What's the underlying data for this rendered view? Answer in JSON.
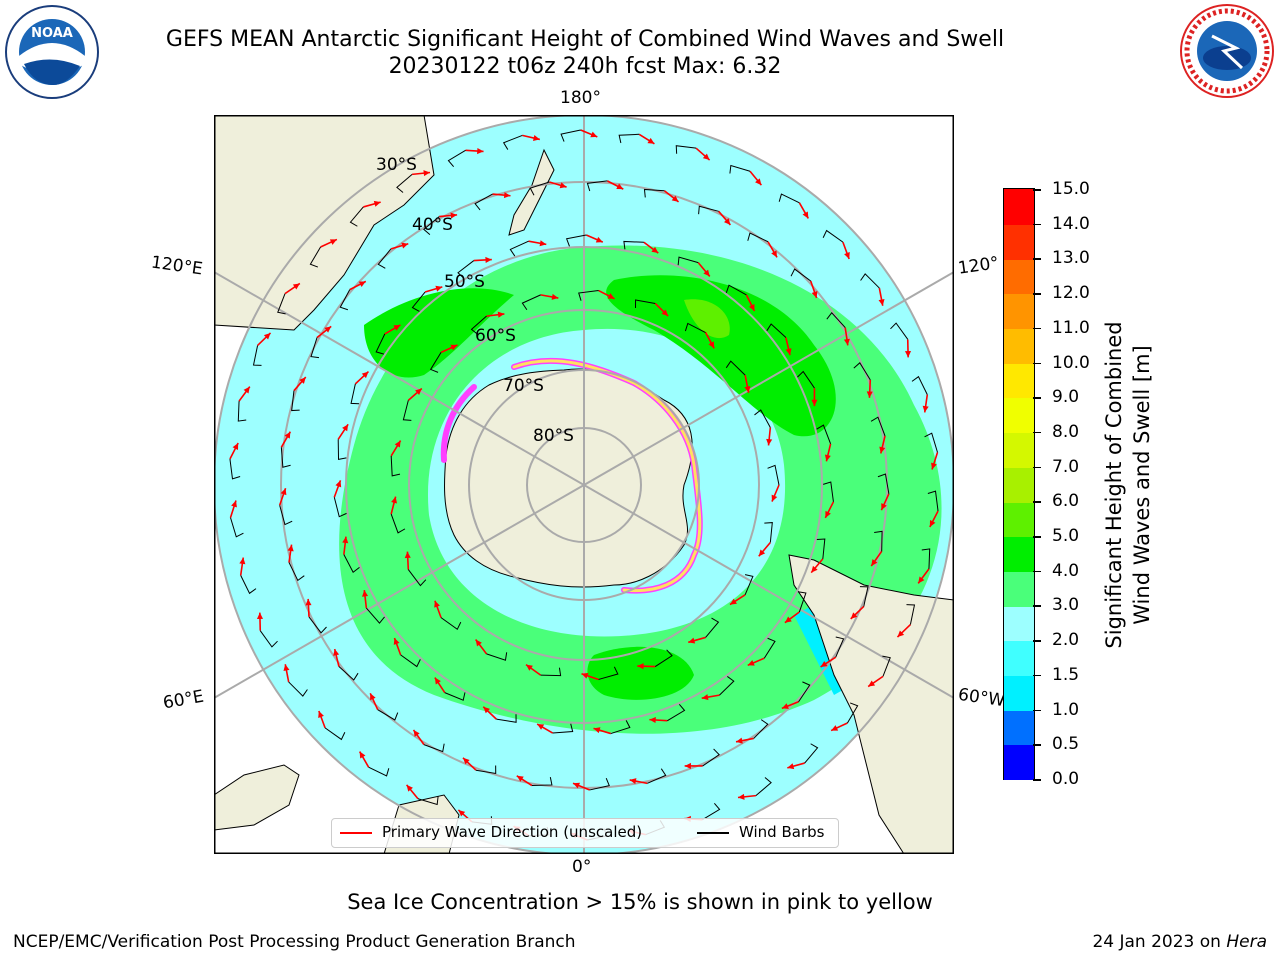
{
  "title_line1": "GEFS MEAN Antarctic Significant Height of Combined Wind Waves and Swell",
  "title_line2": "20230122 t06z 240h fcst   Max: 6.32",
  "logos": {
    "left": "noaa-logo",
    "left_text": "NOAA",
    "right": "nws-logo"
  },
  "map": {
    "projection": "south-polar-stereographic",
    "lon_labels": {
      "top": "180°",
      "bottom": "0°",
      "upper_left": "120°E",
      "lower_left": "60°E",
      "upper_right": "120°",
      "lower_right": "60°W"
    },
    "lat_labels": [
      "30°S",
      "40°S",
      "50°S",
      "60°S",
      "70°S",
      "80°S"
    ],
    "colors": {
      "land": "#efefdb",
      "background": "#ffffff"
    }
  },
  "colorbar": {
    "label_line1": "Significant Height of Combined",
    "label_line2": "Wind Waves and Swell [m]",
    "ticks": [
      "0.0",
      "0.5",
      "1.0",
      "1.5",
      "2.0",
      "3.0",
      "4.0",
      "5.0",
      "6.0",
      "7.0",
      "8.0",
      "9.0",
      "10.0",
      "11.0",
      "12.0",
      "13.0",
      "14.0",
      "15.0"
    ],
    "colors": [
      "#0000ff",
      "#0070ff",
      "#00f0ff",
      "#40ffff",
      "#9dffff",
      "#4aff7a",
      "#00ee00",
      "#5ef000",
      "#a8f000",
      "#d4f800",
      "#f0ff00",
      "#ffe800",
      "#ffbc00",
      "#ff9400",
      "#ff6c00",
      "#ff3000",
      "#ff0000"
    ]
  },
  "legend": {
    "item1": "Primary Wave Direction (unscaled)",
    "item1_color": "#ff0000",
    "item2": "Wind Barbs",
    "item2_color": "#000000"
  },
  "note": "Sea Ice Concentration > 15% is shown in pink to yellow",
  "footer_left": "NCEP/EMC/Verification Post Processing Product Generation Branch",
  "footer_right_date": "24 Jan 2023 on ",
  "footer_right_machine": "Hera"
}
